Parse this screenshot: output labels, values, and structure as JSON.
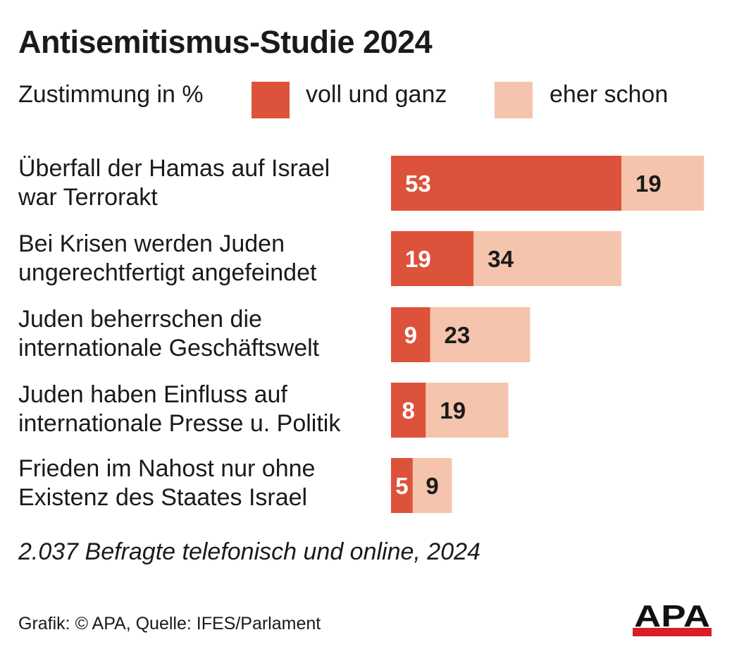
{
  "title": "Antisemitismus-Studie 2024",
  "legend": {
    "caption": "Zustimmung in %",
    "items": [
      {
        "label": "voll und ganz",
        "color": "#dc523a"
      },
      {
        "label": "eher schon",
        "color": "#f5c4ac"
      }
    ]
  },
  "chart_data": {
    "type": "bar",
    "orientation": "horizontal",
    "stacked": true,
    "categories": [
      [
        "Überfall der Hamas auf Israel",
        "war Terrorakt"
      ],
      [
        "Bei Krisen werden Juden",
        "ungerechtfertigt angefeindet"
      ],
      [
        "Juden beherrschen die",
        "internationale Geschäftswelt"
      ],
      [
        "Juden haben Einfluss auf",
        "internationale Presse u. Politik"
      ],
      [
        "Frieden im Nahost nur ohne",
        "Existenz des Staates Israel"
      ]
    ],
    "series": [
      {
        "name": "voll und ganz",
        "color": "#dc523a",
        "label_color": "#ffffff",
        "values": [
          53,
          19,
          9,
          8,
          5
        ]
      },
      {
        "name": "eher schon",
        "color": "#f5c4ac",
        "label_color": "#1a1a1a",
        "values": [
          19,
          34,
          23,
          19,
          9
        ]
      }
    ],
    "xlim": [
      0,
      72
    ],
    "grid": false,
    "legend_position": "top"
  },
  "note": "2.037 Befragte telefonisch und online, 2024",
  "source": "Grafik: © APA, Quelle: IFES/Parlament",
  "logo_text": "APA"
}
